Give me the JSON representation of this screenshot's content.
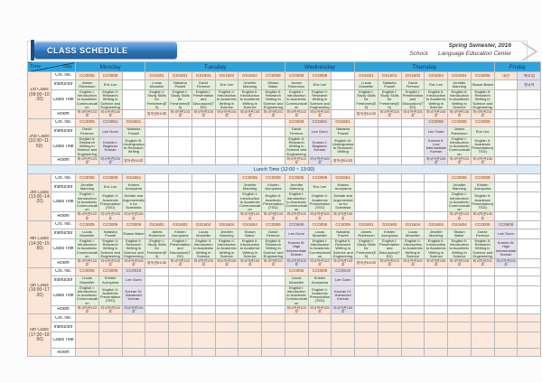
{
  "header": {
    "title": "CLASS SCHEDULE",
    "semester": "Spring Semester, 2016",
    "school_label": "School.",
    "school_value": "Language Education Center"
  },
  "colors": {
    "day_header_blue": "#2ea3dc",
    "header_text_navy": "#17375e",
    "course_no_peach": "#fce4d6",
    "english_green": "#e2efda",
    "korean_purple": "#e4dfec",
    "lunch_blue": "#ddebf7",
    "banner_blue": "#2e75b6"
  },
  "schedule": {
    "corner_time": "Time",
    "corner_day": "Day",
    "row_labels": [
      "Crs. No.",
      "Instructor",
      "Class Title",
      "Room"
    ],
    "lunch_label": "Lunch Time (12:00 ~ 13:00)",
    "days": [
      {
        "name": "Monday",
        "cols": 3
      },
      {
        "name": "Tuesday",
        "cols": 6
      },
      {
        "name": "Wednesday",
        "cols": 3
      },
      {
        "name": "Thursday",
        "cols": 6
      },
      {
        "name": "Friday",
        "cols": 2
      }
    ],
    "periods": [
      {
        "label": "1st Class",
        "time": "(09:00~10:20)",
        "tint": false,
        "cells": [
          {
            "no": "CC0005",
            "ins": "James Robenson",
            "title": "English I: Introduction to Academic Communication",
            "room": "외국어관103호"
          },
          {
            "no": "CC0009",
            "ins": "Eric Lee",
            "title": "English II: Research Writing in Science and Engineering",
            "room": "외국어관105호"
          },
          null,
          {
            "no": "GS1601",
            "ins": "Lucas Moweller",
            "title": "English I: Study Skills for Freshmen(E5)",
            "room": "창의관610호"
          },
          {
            "no": "GS1601",
            "ins": "Natasha Powell",
            "title": "English I: Study Skills for Freshmen(E5)",
            "room": "외국어관103호"
          },
          {
            "no": "GS1603",
            "ins": "David Ference",
            "title": "English I: Presentation and Discussion(TED)",
            "room": "외국어관105호"
          },
          {
            "no": "GS1604",
            "ins": "Eric Lee",
            "title": "English II: Introduction to Academic Writing in Science",
            "room": "외국어관106호"
          },
          {
            "no": "GS160A",
            "ins": "Jennifer Manning",
            "title": "English II: Introduction to Academic Writing in Science",
            "room": "외국어관108호"
          },
          {
            "no": "CC0009",
            "ins": "Shawn Baker",
            "title": "English II: Research Writing in Science and Engineering",
            "room": "외국어관201호"
          },
          {
            "no": "CC0005",
            "ins": "James Robenson",
            "title": "English I: Introduction to Academic Communication",
            "room": "외국어관103호"
          },
          {
            "no": "CC0009",
            "ins": "Eric Lee",
            "title": "English II: Research Writing in Science and Engineering",
            "room": "외국어관105호"
          },
          null,
          {
            "no": "GS1601",
            "ins": "Lucas Moweller",
            "title": "English I: Study Skills for Freshmen(E5)",
            "room": "창의관610호"
          },
          {
            "no": "GS1601",
            "ins": "Natasha Powell",
            "title": "English I: Study Skills for Freshmen(E5)",
            "room": "외국어관103호"
          },
          {
            "no": "GS1603",
            "ins": "David Ference",
            "title": "English I: Presentation and Discussion(TED)",
            "room": "외국어관105호"
          },
          {
            "no": "GS1604",
            "ins": "Eric Lee",
            "title": "English II: Introduction to Academic Writing in Science",
            "room": "외국어관106호"
          },
          {
            "no": "GS1604",
            "ins": "Jennifer Manning",
            "title": "English II: Introduction to Academic Writing in Science",
            "room": "외국어관108호"
          },
          {
            "no": "CC0006",
            "ins": "Shawn Baker",
            "title": "English II: Research Writing in Science and Engineering",
            "room": "외국어관201호"
          },
          {
            "no": "대관"
          },
          {
            "no": "예약됨",
            "ins": "한국어",
            "k": true
          }
        ]
      },
      {
        "label": "2nd Class",
        "time": "(10:30~11:50)",
        "tint": false,
        "cells": [
          {
            "no": "CC0009",
            "ins": "David Ference",
            "title": "English II: Research Writing in Science and Engineering",
            "room": "외국어관103호"
          },
          {
            "no": "CC0061",
            "ins": "Lee Gunn",
            "title": "Korean I: Beginner Korean",
            "room": "외국어관105호",
            "k": true
          },
          {
            "no": "GS2601",
            "ins": "Natasha Powell",
            "title": "English III: Undergraduate Research Writing",
            "room": "창의관610호"
          },
          null,
          null,
          null,
          null,
          null,
          null,
          {
            "no": "CC0009",
            "ins": "David Ference",
            "title": "English II: Research Writing in Science and Engineering",
            "room": "외국어관103호"
          },
          {
            "no": "CC0061",
            "ins": "Lee Gunn",
            "title": "Korean I: Beginner Korean",
            "room": "외국어관105호",
            "k": true
          },
          {
            "no": "GS2601",
            "ins": "Natasha Powell",
            "title": "English III: Undergraduate Research Writing",
            "room": "창의관610호"
          },
          null,
          null,
          null,
          {
            "no": "CC0006",
            "ins": "Lee Gunn",
            "title": "Korean II: Low Intermediate Korean",
            "room": "외국어관105호",
            "k": true
          },
          {
            "no": "CC0005",
            "ins": "James Robenson",
            "title": "English I: Introduction to Academic Communication",
            "room": "외국어관103호"
          },
          {
            "no": "CC0009",
            "ins": "Eric Lee",
            "title": "English II: Academic Presentation(TED)",
            "room": "외국어관106호"
          },
          null,
          null
        ]
      },
      {
        "label": "3rd Class",
        "time": "(13:00~14:20)",
        "tint": false,
        "cells": [
          {
            "no": "CC0005",
            "ins": "Jennifer Manning",
            "title": "English I: Introduction to Academic Communication",
            "room": "외국어관103호"
          },
          {
            "no": "CC0009",
            "ins": "Eric Lee",
            "title": "English II: Academic Presentation(TED)",
            "room": "외국어관105호"
          },
          {
            "no": "GS2651",
            "ins": "Kristen Aoruyama",
            "title": "Debate and Argumentation for Scientists",
            "room": "외국어관106호"
          },
          null,
          null,
          null,
          null,
          {
            "no": "CC0005",
            "ins": "Jennifer Manning",
            "title": "English I: Introduction to Academic Communication",
            "room": "외국어관103호"
          },
          {
            "no": "CC0009",
            "ins": "Kristen Aoruyama",
            "title": "English II: Academic Presentation(TED)",
            "room": "외국어관105호"
          },
          {
            "no": "CC0005",
            "ins": "Jennifer Manning",
            "title": "English I: Introduction to Academic Communication",
            "room": "외국어관103호"
          },
          {
            "no": "CC0009",
            "ins": "Eric Lee",
            "title": "English II: Academic Presentation(TED)",
            "room": "외국어관105호"
          },
          {
            "no": "GS2651",
            "ins": "Kristen Aoruyama",
            "title": "Debate and Argumentation for Scientists",
            "room": "외국어관106호"
          },
          null,
          null,
          null,
          null,
          {
            "no": "CC0006",
            "ins": "Jennifer Manning",
            "title": "English I: Introduction to Academic Communication",
            "room": "외국어관103호"
          },
          {
            "no": "CC0009",
            "ins": "Kristen Aoruyama",
            "title": "English II: Academic Presentation(TED)",
            "room": "외국어관105호"
          },
          null,
          null
        ]
      },
      {
        "label": "4th Class",
        "time": "(14:30~15:50)",
        "tint": false,
        "cells": [
          {
            "no": "CC0005",
            "ins": "Lucas Moweller",
            "title": "English I: Introduction to Academic Communication",
            "room": "외국어관103호"
          },
          {
            "no": "CC0009",
            "ins": "Natasha Powell",
            "title": "English II: Research Writing in Science and Engineering",
            "room": "외국어관105호"
          },
          {
            "no": "CC0009",
            "ins": "Shawn Baker",
            "title": "English II: Research Writing in Science and Engineering",
            "room": "외국어관106호"
          },
          {
            "no": "GS1601",
            "ins": "James Robenson",
            "title": "English I: Study Skills for Freshmen(E5)",
            "room": "창의관610호"
          },
          {
            "no": "GS1602",
            "ins": "Kristen Aoruyama",
            "title": "English I: Presentation and Discussion(TED)",
            "room": "외국어관103호"
          },
          {
            "no": "GS1604",
            "ins": "Lucas Moweller",
            "title": "English II: Introduction to Academic Writing in Science",
            "room": "외국어관105호"
          },
          {
            "no": "GS1604",
            "ins": "Jennifer Manning",
            "title": "English II: Introduction to Academic Writing in Science",
            "room": "외국어관106호"
          },
          {
            "no": "GS1604",
            "ins": "Shawn Baker",
            "title": "English II: Introduction to Academic Writing in Science",
            "room": "외국어관108호"
          },
          {
            "no": "CC0009",
            "ins": "David Ference",
            "title": "English II: Research Writing in Science and Engineering",
            "room": "외국어관201호"
          },
          {
            "no": "CC0609",
            "ins": "Lee Gunn",
            "title": "Korean III: High Intermediate Korean",
            "room": "외국어관105호",
            "k": true
          },
          {
            "no": "CC0006",
            "ins": "Lucas Moweller",
            "title": "English I: Introduction to Academic Communication",
            "room": "외국어관103호"
          },
          {
            "no": "CC0009",
            "ins": "Natasha Powell",
            "title": "English II: Research Writing in Science and Engineering",
            "room": "외국어관106호"
          },
          {
            "no": "GS1601",
            "ins": "James Robenson",
            "title": "English I: Study Skills for Freshmen(E5)",
            "room": "창의관610호"
          },
          {
            "no": "GS1602",
            "ins": "Kristen Aoruyama",
            "title": "English I: Presentation and Discussion(TED)",
            "room": "외국어관103호"
          },
          {
            "no": "GS1604",
            "ins": "Lucas Moweller",
            "title": "English II: Introduction to Academic Writing in Science",
            "room": "외국어관105호"
          },
          {
            "no": "GS1604",
            "ins": "Jennifer Manning",
            "title": "English II: Introduction to Academic Writing in Science",
            "room": "외국어관106호"
          },
          {
            "no": "GS1604",
            "ins": "Shawn Baker",
            "title": "English II: Introduction to Academic Writing in Science",
            "room": "외국어관108호"
          },
          {
            "no": "CC0006",
            "ins": "David Ference",
            "title": "English II: Research Writing in Science and Engineering",
            "room": "외국어관201호"
          },
          {
            "no": "CC0609",
            "ins": "Lee Gunn",
            "title": "Korean III: High Intermediate Korean",
            "room": "외국어관105호",
            "k": true
          },
          null
        ]
      },
      {
        "label": "5th Class",
        "time": "(16:00~17:20)",
        "tint": false,
        "cells": [
          {
            "no": "CC0005",
            "ins": "Lucas Moweller",
            "title": "English I: Introduction to Academic Communication",
            "room": "외국어관103호"
          },
          {
            "no": "CC0009",
            "ins": "Kristen Aoruyama",
            "title": "English II: Academic Presentation(TED)",
            "room": "외국어관105호"
          },
          {
            "no": "CC0019",
            "ins": "Lee Gunn",
            "title": "Korean IV: Advanced Korean",
            "room": "외국어관106호",
            "k": true
          },
          null,
          null,
          null,
          null,
          null,
          null,
          {
            "no": "CC0006",
            "ins": "Lucas Moweller",
            "title": "English I: Introduction to Academic Communication",
            "room": "외국어관103호"
          },
          {
            "no": "CC0009",
            "ins": "Kristen Aoruyama",
            "title": "English II: Academic Presentation(TED)",
            "room": "외국어관105호"
          },
          {
            "no": "CC0619",
            "ins": "Lee Gunn",
            "title": "Korean IV: Advanced Korean",
            "room": "외국어관106호",
            "k": true
          },
          null,
          null,
          null,
          null,
          null,
          null,
          null,
          null
        ]
      },
      {
        "label": "6th Class",
        "time": "(17:30~18:50)",
        "tint": true,
        "cells": [
          null,
          null,
          null,
          null,
          null,
          null,
          null,
          null,
          null,
          null,
          null,
          null,
          null,
          null,
          null,
          null,
          null,
          null,
          null,
          null
        ]
      }
    ]
  }
}
